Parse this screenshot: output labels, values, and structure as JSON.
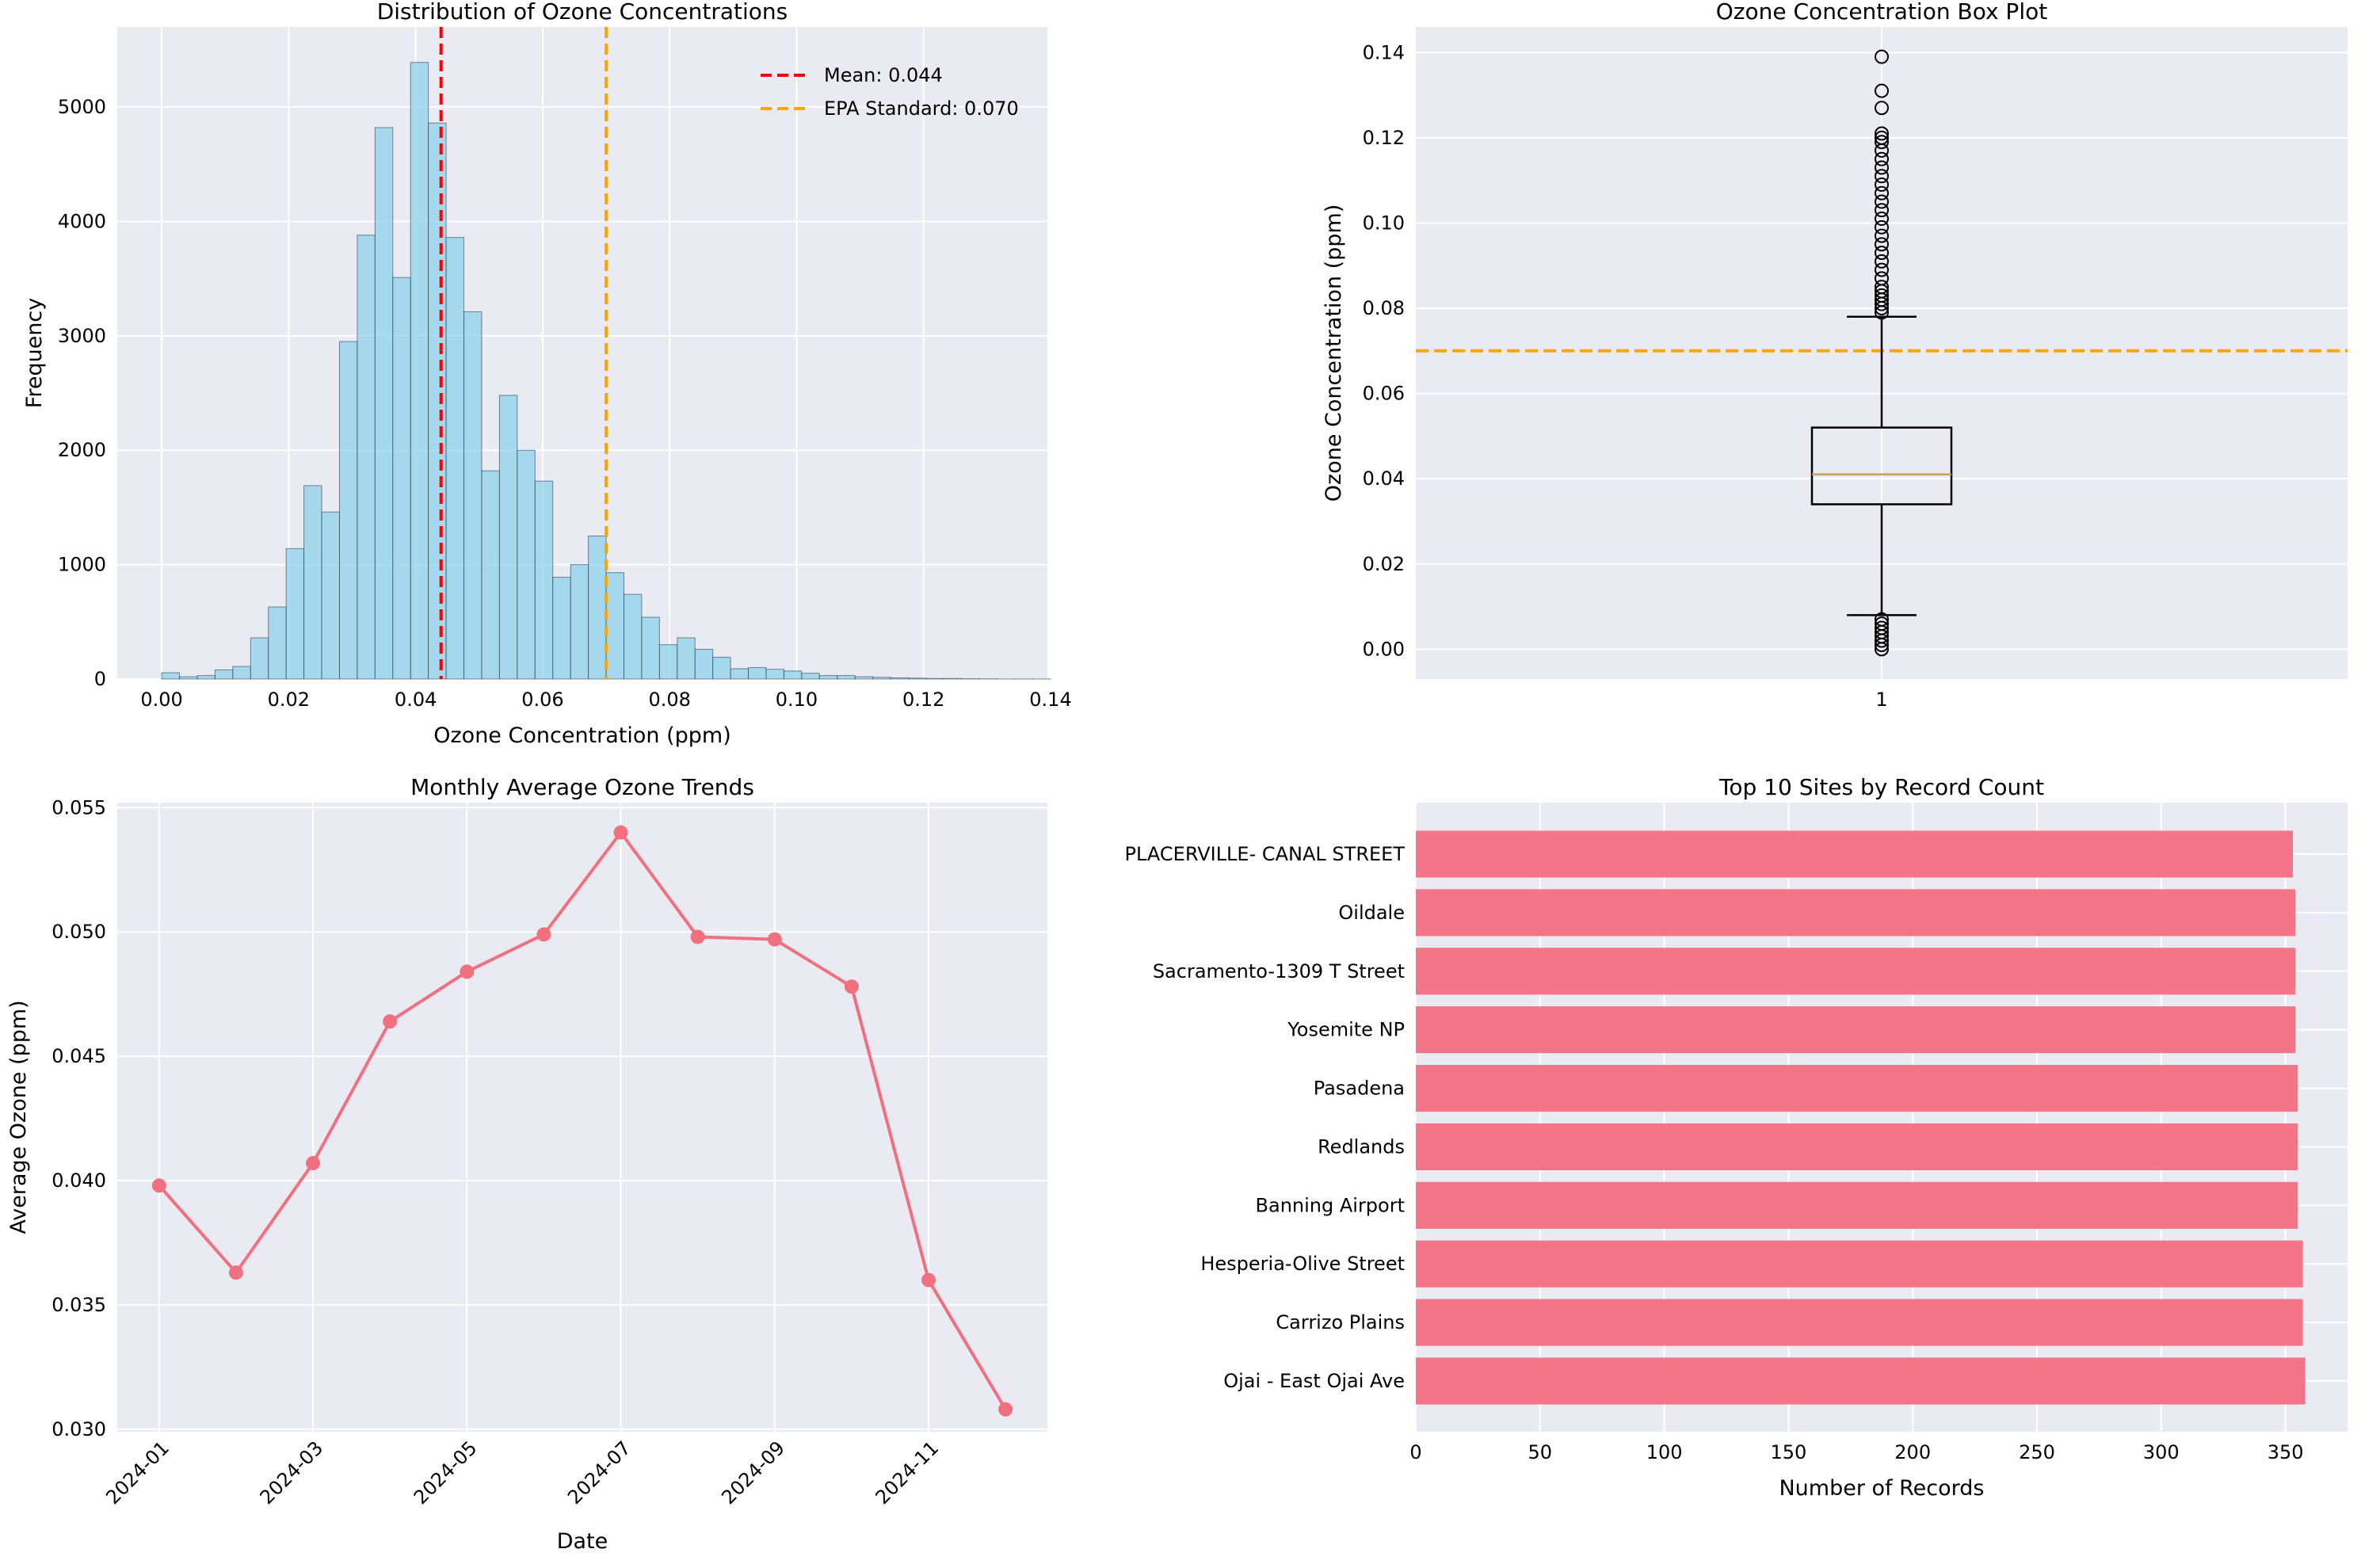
{
  "chart_data": [
    {
      "type": "histogram",
      "title": "Distribution of Ozone Concentrations",
      "xlabel": "Ozone Concentration (ppm)",
      "ylabel": "Frequency",
      "xlim": [
        -0.007,
        0.1395
      ],
      "ylim": [
        0,
        5700
      ],
      "xticks": [
        0.0,
        0.02,
        0.04,
        0.06,
        0.08,
        0.1,
        0.12,
        0.14
      ],
      "xtick_labels": [
        "0.00",
        "0.02",
        "0.04",
        "0.06",
        "0.08",
        "0.10",
        "0.12",
        "0.14"
      ],
      "yticks": [
        0,
        1000,
        2000,
        3000,
        4000,
        5000
      ],
      "ytick_labels": [
        "0",
        "1000",
        "2000",
        "3000",
        "4000",
        "5000"
      ],
      "bin_start": 0.0,
      "bin_width": 0.0028,
      "counts": [
        55,
        20,
        30,
        80,
        110,
        360,
        630,
        1140,
        1690,
        1460,
        2950,
        3880,
        4820,
        3510,
        5390,
        4860,
        3860,
        3210,
        1820,
        2480,
        2000,
        1730,
        890,
        1000,
        1250,
        930,
        740,
        540,
        300,
        360,
        260,
        190,
        90,
        100,
        85,
        70,
        50,
        30,
        30,
        20,
        15,
        10,
        8,
        5,
        5,
        3,
        2,
        1,
        1,
        1
      ],
      "bar_color": "#87CEEB",
      "lines": [
        {
          "label": "Mean: 0.044",
          "x": 0.044,
          "color": "#ff0000"
        },
        {
          "label": "EPA Standard: 0.070",
          "x": 0.07,
          "color": "#ffa500"
        }
      ],
      "legend_position": "top-right"
    },
    {
      "type": "box",
      "title": "Ozone Concentration Box Plot",
      "xlabel": "",
      "ylabel": "Ozone Concentration (ppm)",
      "ylim": [
        -0.007,
        0.146
      ],
      "yticks": [
        0.0,
        0.02,
        0.04,
        0.06,
        0.08,
        0.1,
        0.12,
        0.14
      ],
      "ytick_labels": [
        "0.00",
        "0.02",
        "0.04",
        "0.06",
        "0.08",
        "0.10",
        "0.12",
        "0.14"
      ],
      "xtick_labels": [
        "1"
      ],
      "whisker_low": 0.008,
      "q1": 0.034,
      "median": 0.041,
      "q3": 0.052,
      "whisker_high": 0.078,
      "outliers_high": [
        0.139,
        0.131,
        0.127,
        0.121,
        0.12,
        0.119,
        0.117,
        0.115,
        0.113,
        0.111,
        0.109,
        0.107,
        0.105,
        0.103,
        0.101,
        0.099,
        0.097,
        0.095,
        0.093,
        0.091,
        0.089,
        0.087,
        0.085,
        0.084,
        0.083,
        0.082,
        0.081,
        0.08,
        0.079
      ],
      "outliers_low": [
        0.007,
        0.006,
        0.005,
        0.004,
        0.003,
        0.002,
        0.001,
        0.0
      ],
      "reference_line": 0.07,
      "reference_color": "#ffa500",
      "median_color": "#c8a060"
    },
    {
      "type": "line",
      "title": "Monthly Average Ozone Trends",
      "xlabel": "Date",
      "ylabel": "Average Ozone (ppm)",
      "months": [
        "2024-01",
        "2024-02",
        "2024-03",
        "2024-04",
        "2024-05",
        "2024-06",
        "2024-07",
        "2024-08",
        "2024-09",
        "2024-10",
        "2024-11",
        "2024-12"
      ],
      "values": [
        0.0398,
        0.0363,
        0.0407,
        0.0464,
        0.0484,
        0.0499,
        0.054,
        0.0498,
        0.0497,
        0.0478,
        0.036,
        0.0308
      ],
      "xtick_labels": [
        "2024-01",
        "2024-03",
        "2024-05",
        "2024-07",
        "2024-09",
        "2024-11"
      ],
      "ylim": [
        0.0299,
        0.0552
      ],
      "yticks": [
        0.03,
        0.035,
        0.04,
        0.045,
        0.05,
        0.055
      ],
      "ytick_labels": [
        "0.030",
        "0.035",
        "0.040",
        "0.045",
        "0.050",
        "0.055"
      ],
      "color": "#f0707f"
    },
    {
      "type": "barh",
      "title": "Top 10 Sites by Record Count",
      "xlabel": "Number of Records",
      "ylabel": "",
      "categories": [
        "PLACERVILLE- CANAL STREET",
        "Oildale",
        "Sacramento-1309 T Street",
        "Yosemite NP",
        "Pasadena",
        "Redlands",
        "Banning Airport",
        "Hesperia-Olive Street",
        "Carrizo Plains",
        "Ojai - East Ojai Ave"
      ],
      "values": [
        353,
        354,
        354,
        354,
        355,
        355,
        355,
        357,
        357,
        358
      ],
      "xlim": [
        0,
        375
      ],
      "xticks": [
        0,
        50,
        100,
        150,
        200,
        250,
        300,
        350
      ],
      "xtick_labels": [
        "0",
        "50",
        "100",
        "150",
        "200",
        "250",
        "300",
        "350"
      ],
      "color": "#f47488"
    }
  ]
}
